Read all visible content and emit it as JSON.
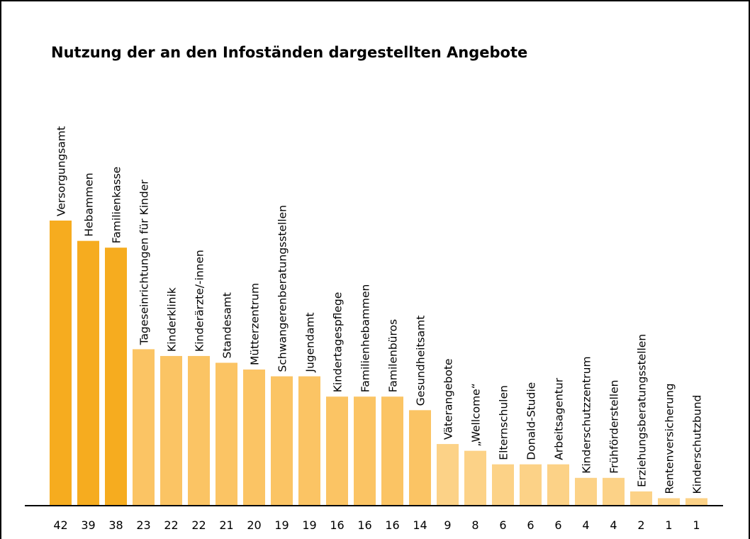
{
  "chart_data": {
    "type": "bar",
    "title": "Nutzung der an den Infoständen dargestellten Angebote",
    "categories": [
      "Versorgungsamt",
      "Hebammen",
      "Familienkasse",
      "Tageseinrichtungen für Kinder",
      "Kinderklinik",
      "Kinderärzte/-innen",
      "Standesamt",
      "Mütterzentrum",
      "Schwangerenberatungsstellen",
      "Jugendamt",
      "Kindertagespflege",
      "Familienhebammen",
      "Familenbüros",
      "Gesundheitsamt",
      "Väterangebote",
      "„Wellcome“",
      "Elternschulen",
      "Donald-Studie",
      "Arbeitsagentur",
      "Kinderschutzzentrum",
      "Frühförderstellen",
      "Erziehungsberatungsstellen",
      "Rentenversicherung",
      "Kinderschutzbund"
    ],
    "values": [
      42,
      39,
      38,
      23,
      22,
      22,
      21,
      20,
      19,
      19,
      16,
      16,
      16,
      14,
      9,
      8,
      6,
      6,
      6,
      4,
      4,
      2,
      1,
      1
    ],
    "colors": [
      "#f6ac1f",
      "#f6ac1f",
      "#f6ac1f",
      "#fbc464",
      "#fbc464",
      "#fbc464",
      "#fbc464",
      "#fbc464",
      "#fbc464",
      "#fbc464",
      "#fbc464",
      "#fbc464",
      "#fbc464",
      "#fbc464",
      "#fcd287",
      "#fcd287",
      "#fcd287",
      "#fcd287",
      "#fcd287",
      "#fcd287",
      "#fcd287",
      "#fcd287",
      "#fcd287",
      "#fcd287"
    ]
  }
}
